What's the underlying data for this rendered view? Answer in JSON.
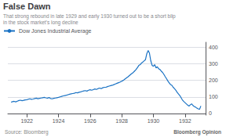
{
  "chart_data": {
    "type": "line",
    "title": "False Dawn",
    "subtitle": "That strong rebound in late 1929 and early 1930 turned out to be a short blip\nin the stock market’s long decline",
    "annotations": [
      "Source: Bloomberg",
      "Bloomberg Opinion"
    ],
    "legend": "upper left",
    "grid": "y",
    "xlim": [
      1920.8,
      1933.3
    ],
    "xticks": [
      1922,
      1924,
      1926,
      1928,
      1930,
      1932
    ],
    "ylim": [
      -10,
      430
    ],
    "yticks": [
      0,
      100,
      200,
      300,
      400
    ],
    "x": [
      1921.0,
      1921.1,
      1921.2,
      1921.3,
      1921.4,
      1921.5,
      1921.6,
      1921.7,
      1921.8,
      1921.9,
      1922.0,
      1922.1,
      1922.2,
      1922.3,
      1922.4,
      1922.5,
      1922.6,
      1922.7,
      1922.8,
      1922.9,
      1923.0,
      1923.1,
      1923.2,
      1923.3,
      1923.4,
      1923.5,
      1923.6,
      1923.7,
      1923.8,
      1923.9,
      1924.0,
      1924.1,
      1924.2,
      1924.3,
      1924.4,
      1924.5,
      1924.6,
      1924.7,
      1924.8,
      1924.9,
      1925.0,
      1925.1,
      1925.2,
      1925.3,
      1925.4,
      1925.5,
      1925.6,
      1925.7,
      1925.8,
      1925.9,
      1926.0,
      1926.1,
      1926.2,
      1926.3,
      1926.4,
      1926.5,
      1926.6,
      1926.7,
      1926.8,
      1926.9,
      1927.0,
      1927.1,
      1927.2,
      1927.3,
      1927.4,
      1927.5,
      1927.6,
      1927.7,
      1927.8,
      1927.9,
      1928.0,
      1928.1,
      1928.2,
      1928.3,
      1928.4,
      1928.5,
      1928.6,
      1928.7,
      1928.8,
      1928.9,
      1929.0,
      1929.08,
      1929.17,
      1929.25,
      1929.33,
      1929.42,
      1929.5,
      1929.58,
      1929.67,
      1929.75,
      1929.83,
      1929.92,
      1930.0,
      1930.08,
      1930.17,
      1930.25,
      1930.33,
      1930.42,
      1930.5,
      1930.58,
      1930.67,
      1930.75,
      1930.83,
      1930.92,
      1931.0,
      1931.08,
      1931.17,
      1931.25,
      1931.33,
      1931.42,
      1931.5,
      1931.58,
      1931.67,
      1931.75,
      1931.83,
      1931.92,
      1932.0,
      1932.08,
      1932.17,
      1932.25,
      1932.33,
      1932.42,
      1932.5,
      1932.58,
      1932.67,
      1932.75,
      1932.83,
      1932.92,
      1933.0
    ],
    "series": [
      {
        "name": "Dow Jones Industrial Average",
        "color": "#1a72c4",
        "values": [
          68,
          71,
          73,
          70,
          74,
          78,
          80,
          77,
          79,
          82,
          83,
          86,
          88,
          85,
          87,
          90,
          92,
          89,
          91,
          93,
          95,
          97,
          94,
          92,
          96,
          90,
          88,
          91,
          93,
          95,
          97,
          100,
          103,
          106,
          108,
          110,
          113,
          116,
          118,
          120,
          122,
          126,
          124,
          128,
          130,
          133,
          136,
          138,
          135,
          140,
          143,
          140,
          144,
          148,
          145,
          150,
          153,
          150,
          155,
          158,
          158,
          162,
          165,
          168,
          170,
          174,
          178,
          182,
          186,
          190,
          195,
          200,
          208,
          215,
          222,
          230,
          238,
          245,
          255,
          265,
          278,
          290,
          295,
          305,
          310,
          318,
          325,
          360,
          380,
          365,
          320,
          290,
          285,
          295,
          275,
          282,
          270,
          265,
          255,
          248,
          235,
          222,
          210,
          195,
          185,
          175,
          170,
          158,
          150,
          140,
          128,
          118,
          108,
          95,
          82,
          72,
          65,
          58,
          50,
          44,
          52,
          58,
          48,
          42,
          38,
          32,
          28,
          25,
          45
        ]
      }
    ]
  }
}
